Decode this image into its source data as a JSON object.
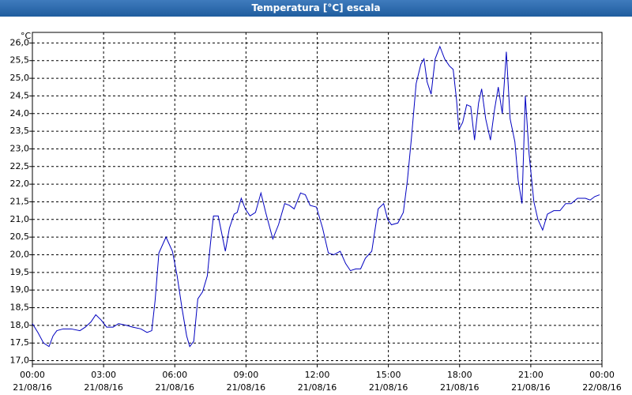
{
  "chart_data": {
    "type": "line",
    "title": "Temperatura [°C] escala",
    "y_label": "°C",
    "xlim": [
      0,
      24
    ],
    "ylim": [
      16.9,
      26.3
    ],
    "grid": true,
    "color": "#0000c0",
    "xticks": [
      {
        "value": 0,
        "label": [
          "00:00",
          "21/08/16"
        ]
      },
      {
        "value": 3,
        "label": [
          "03:00",
          "21/08/16"
        ]
      },
      {
        "value": 6,
        "label": [
          "06:00",
          "21/08/16"
        ]
      },
      {
        "value": 9,
        "label": [
          "09:00",
          "21/08/16"
        ]
      },
      {
        "value": 12,
        "label": [
          "12:00",
          "21/08/16"
        ]
      },
      {
        "value": 15,
        "label": [
          "15:00",
          "21/08/16"
        ]
      },
      {
        "value": 18,
        "label": [
          "18:00",
          "21/08/16"
        ]
      },
      {
        "value": 21,
        "label": [
          "21:00",
          "21/08/16"
        ]
      },
      {
        "value": 24,
        "label": [
          "00:00",
          "22/08/16"
        ]
      }
    ],
    "yticks": [
      {
        "value": 17,
        "label": "17,0"
      },
      {
        "value": 17.5,
        "label": "17,5"
      },
      {
        "value": 18,
        "label": "18,0"
      },
      {
        "value": 18.5,
        "label": "18,5"
      },
      {
        "value": 19,
        "label": "19,0"
      },
      {
        "value": 19.5,
        "label": "19,5"
      },
      {
        "value": 20,
        "label": "20,0"
      },
      {
        "value": 20.5,
        "label": "20,5"
      },
      {
        "value": 21,
        "label": "21,0"
      },
      {
        "value": 21.5,
        "label": "21,5"
      },
      {
        "value": 22,
        "label": "22,0"
      },
      {
        "value": 22.5,
        "label": "22,5"
      },
      {
        "value": 23,
        "label": "23,0"
      },
      {
        "value": 23.5,
        "label": "23,5"
      },
      {
        "value": 24,
        "label": "24,0"
      },
      {
        "value": 24.5,
        "label": "24,5"
      },
      {
        "value": 25,
        "label": "25,0"
      },
      {
        "value": 25.5,
        "label": "25,5"
      },
      {
        "value": 26,
        "label": "26,0"
      }
    ],
    "x": [
      0,
      0.23,
      0.47,
      0.7,
      0.87,
      1.03,
      1.3,
      1.63,
      2.0,
      2.23,
      2.47,
      2.67,
      2.9,
      3.13,
      3.4,
      3.63,
      3.97,
      4.23,
      4.57,
      4.83,
      5.03,
      5.17,
      5.33,
      5.63,
      5.9,
      6.1,
      6.3,
      6.5,
      6.63,
      6.8,
      6.97,
      7.17,
      7.37,
      7.5,
      7.63,
      7.83,
      8.13,
      8.3,
      8.5,
      8.63,
      8.8,
      8.97,
      9.17,
      9.4,
      9.63,
      9.83,
      10.13,
      10.37,
      10.63,
      10.83,
      11.03,
      11.3,
      11.5,
      11.7,
      11.97,
      12.23,
      12.47,
      12.7,
      12.97,
      13.2,
      13.4,
      13.63,
      13.83,
      14.03,
      14.3,
      14.57,
      14.8,
      14.97,
      15.13,
      15.4,
      15.63,
      15.8,
      15.97,
      16.17,
      16.37,
      16.5,
      16.63,
      16.8,
      16.97,
      17.17,
      17.37,
      17.57,
      17.73,
      17.87,
      17.97,
      18.13,
      18.3,
      18.47,
      18.63,
      18.8,
      18.93,
      19.1,
      19.3,
      19.47,
      19.63,
      19.8,
      19.97,
      20.13,
      20.33,
      20.47,
      20.63,
      20.77,
      20.93,
      21.13,
      21.3,
      21.5,
      21.7,
      21.97,
      22.23,
      22.47,
      22.7,
      22.97,
      23.3,
      23.5,
      23.7,
      23.9
    ],
    "values": [
      18.05,
      17.8,
      17.5,
      17.4,
      17.7,
      17.85,
      17.9,
      17.9,
      17.85,
      17.95,
      18.1,
      18.3,
      18.15,
      17.95,
      17.95,
      18.05,
      18.0,
      17.95,
      17.9,
      17.8,
      17.85,
      18.7,
      20.05,
      20.5,
      20.1,
      19.4,
      18.5,
      17.7,
      17.4,
      17.55,
      18.75,
      18.95,
      19.4,
      20.3,
      21.1,
      21.1,
      20.1,
      20.75,
      21.15,
      21.2,
      21.6,
      21.3,
      21.1,
      21.2,
      21.75,
      21.2,
      20.45,
      20.85,
      21.45,
      21.4,
      21.3,
      21.75,
      21.7,
      21.4,
      21.35,
      20.75,
      20.05,
      20.0,
      20.1,
      19.75,
      19.55,
      19.6,
      19.6,
      19.9,
      20.1,
      21.3,
      21.45,
      21.0,
      20.85,
      20.9,
      21.2,
      22.1,
      23.3,
      24.85,
      25.4,
      25.55,
      24.9,
      24.55,
      25.55,
      25.9,
      25.55,
      25.35,
      25.25,
      24.4,
      23.55,
      23.75,
      24.25,
      24.2,
      23.25,
      24.3,
      24.7,
      23.85,
      23.25,
      24.1,
      24.75,
      24.0,
      25.75,
      23.85,
      23.2,
      22.1,
      21.45,
      24.5,
      22.85,
      21.5,
      21.0,
      20.7,
      21.15,
      21.25,
      21.25,
      21.45,
      21.45,
      21.6,
      21.6,
      21.55,
      21.65,
      21.7
    ]
  }
}
